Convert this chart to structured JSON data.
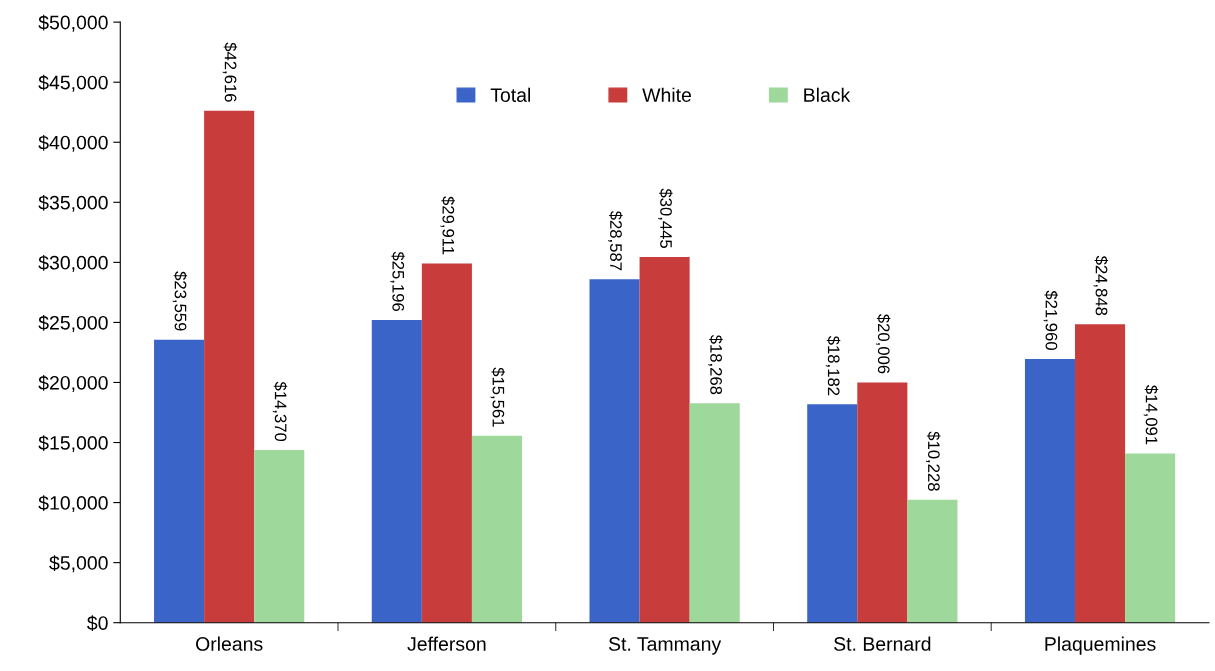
{
  "chart_data": {
    "type": "bar",
    "categories": [
      "Orleans",
      "Jefferson",
      "St. Tammany",
      "St. Bernard",
      "Plaquemines"
    ],
    "series": [
      {
        "name": "Total",
        "color": "#3b64c8",
        "values": [
          23559,
          25196,
          28587,
          18182,
          21960
        ],
        "value_labels": [
          "$23,559",
          "$25,196",
          "$28,587",
          "$18,182",
          "$21,960"
        ]
      },
      {
        "name": "White",
        "color": "#c83c3c",
        "values": [
          42616,
          29911,
          30445,
          20006,
          24848
        ],
        "value_labels": [
          "$42,616",
          "$29,911",
          "$30,445",
          "$20,006",
          "$24,848"
        ]
      },
      {
        "name": "Black",
        "color": "#9ed89b",
        "values": [
          14370,
          15561,
          18268,
          10228,
          14091
        ],
        "value_labels": [
          "$14,370",
          "$15,561",
          "$18,268",
          "$10,228",
          "$14,091"
        ]
      }
    ],
    "ylim": [
      0,
      50000
    ],
    "yticks": [
      {
        "value": 0,
        "label": "$0"
      },
      {
        "value": 5000,
        "label": "$5,000"
      },
      {
        "value": 10000,
        "label": "$10,000"
      },
      {
        "value": 15000,
        "label": "$15,000"
      },
      {
        "value": 20000,
        "label": "$20,000"
      },
      {
        "value": 25000,
        "label": "$25,000"
      },
      {
        "value": 30000,
        "label": "$30,000"
      },
      {
        "value": 35000,
        "label": "$35,000"
      },
      {
        "value": 40000,
        "label": "$40,000"
      },
      {
        "value": 45000,
        "label": "$45,000"
      },
      {
        "value": 50000,
        "label": "$50,000"
      }
    ],
    "grid": false,
    "legend": "top"
  }
}
